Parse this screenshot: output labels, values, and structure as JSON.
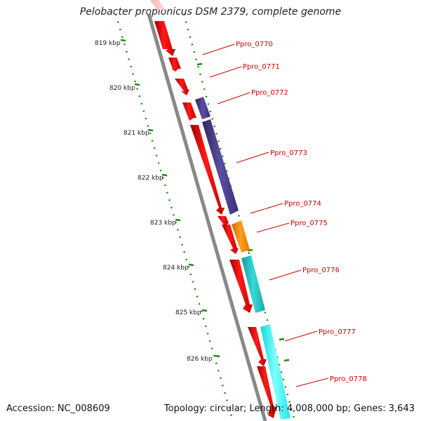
{
  "title": "Pelobacter propionicus DSM 2379, complete genome",
  "footer": {
    "accession": "Accession: NC_008609",
    "summary": "Topology: circular; Length: 4,008,000 bp; Genes: 3,643"
  },
  "colors": {
    "forward_strand": "#ff0000",
    "backbone": "#888888",
    "ruler": "#1a8a1a",
    "label": "#cc0000",
    "purple": "#4b3f8c",
    "orange": "#ff8c00",
    "teal": "#22c3c3",
    "cyan": "#22f2f2"
  },
  "scale_labels": [
    "819 kbp",
    "820 kbp",
    "821 kbp",
    "822 kbp",
    "823 kbp",
    "824 kbp",
    "825 kbp",
    "826 kbp"
  ],
  "gene_labels": [
    "Ppro_0770",
    "Ppro_0771",
    "Ppro_0772",
    "Ppro_0773",
    "Ppro_0774",
    "Ppro_0775",
    "Ppro_0776",
    "Ppro_0777",
    "Ppro_0778"
  ]
}
